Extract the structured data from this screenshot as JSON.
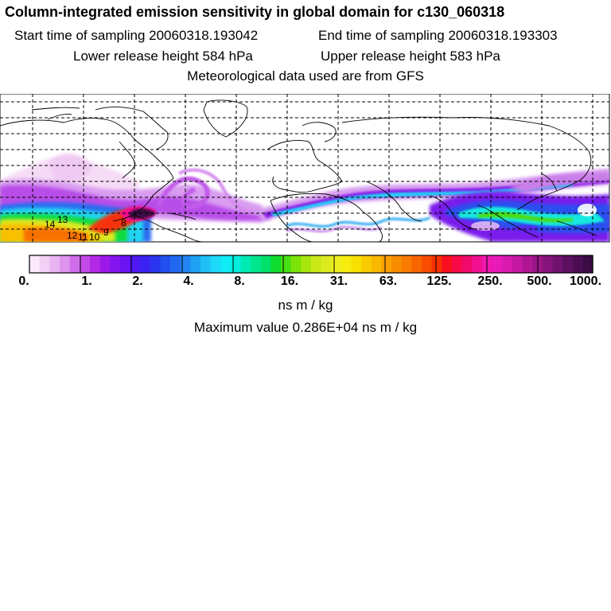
{
  "header": {
    "title": "Column-integrated emission sensitivity in global domain for c130_060318",
    "start_label": "Start time of sampling 20060318.193042",
    "end_label": "End time of sampling 20060318.193303",
    "lower_label": "Lower release height  584 hPa",
    "upper_label": "Upper release height  583 hPa",
    "met_label": "Meteorological data used are from GFS"
  },
  "map": {
    "background": "#ffffff",
    "grid_style": "dashed",
    "trajectory_labels": [
      "14",
      "13",
      "12",
      "11",
      "10",
      "9",
      "8"
    ]
  },
  "colorbar": {
    "tick_labels": [
      "0.",
      "1.",
      "2.",
      "4.",
      "8.",
      "16.",
      "31.",
      "63.",
      "125.",
      "250.",
      "500.",
      "1000."
    ],
    "colors": [
      "#fbeafb",
      "#f3d0f6",
      "#eab4f2",
      "#de94ee",
      "#cf6deb",
      "#c24be8",
      "#b22ae6",
      "#9e18ea",
      "#8415ee",
      "#6b14f2",
      "#5018f2",
      "#3a22f0",
      "#2a36ee",
      "#2250ee",
      "#2168f0",
      "#2184f2",
      "#1ea2f4",
      "#1ec0f6",
      "#1ed8f8",
      "#10ecf6",
      "#00eedc",
      "#00eab4",
      "#00e58e",
      "#00e06a",
      "#10dc30",
      "#46e010",
      "#7ce208",
      "#a8e610",
      "#c8e818",
      "#dcea20",
      "#ecee20",
      "#f6ec10",
      "#f8e000",
      "#f8cc00",
      "#f8b800",
      "#f8a000",
      "#f88c00",
      "#f87a00",
      "#f86400",
      "#f84c00",
      "#f83000",
      "#f81020",
      "#f80a4a",
      "#f00a6a",
      "#f01090",
      "#f018b0",
      "#e81ab8",
      "#d81aae",
      "#c418a2",
      "#b01694",
      "#9a1688",
      "#86147c",
      "#70126e",
      "#5e1060",
      "#4c0e52",
      "#3c0c44"
    ]
  },
  "units": "ns m / kg",
  "max_value_text": "Maximum value  0.286E+04 ns m / kg"
}
